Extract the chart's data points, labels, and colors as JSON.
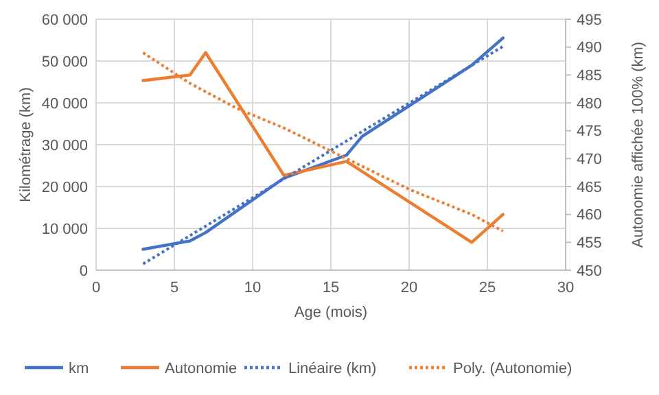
{
  "chart_data": {
    "type": "line",
    "xlabel": "Age (mois)",
    "ylabel": "Kilométrage (km)",
    "y2label": "Autonomie affichée 100% (km)",
    "xlim": [
      0,
      30
    ],
    "xticks": [
      0,
      5,
      10,
      15,
      20,
      25,
      30
    ],
    "ylim": [
      0,
      60000
    ],
    "yticks": [
      0,
      {
        "value": 10000,
        "label": "10 000"
      },
      {
        "value": 20000,
        "label": "20 000"
      },
      {
        "value": 30000,
        "label": "30 000"
      },
      {
        "value": 40000,
        "label": "40 000"
      },
      {
        "value": 50000,
        "label": "50 000"
      },
      {
        "value": 60000,
        "label": "60 000"
      }
    ],
    "y2lim": [
      450,
      495
    ],
    "y2ticks": [
      450,
      455,
      460,
      465,
      470,
      475,
      480,
      485,
      490,
      495
    ],
    "grid": true,
    "legend": "bottom",
    "marker": "none",
    "series": [
      {
        "name": "km",
        "color": "#4472c4",
        "x": [
          3,
          6,
          7,
          12,
          16,
          17,
          24,
          26
        ],
        "values": [
          5000,
          7000,
          9000,
          22000,
          27500,
          32000,
          49000,
          55500
        ],
        "line_style": "solid"
      },
      {
        "name": "Autonomie",
        "color": "#ed7d31",
        "axis": "y2",
        "x": [
          3,
          6,
          7,
          12,
          16,
          24,
          26
        ],
        "values": [
          484,
          485,
          489,
          467,
          469.5,
          455,
          460
        ],
        "line_style": "solid"
      },
      {
        "name": "Linéaire (km)",
        "color": "#4472c4",
        "x": [
          3,
          26
        ],
        "values": [
          1500,
          53500
        ],
        "line_style": "dotted"
      },
      {
        "name": "Poly. (Autonomie)",
        "color": "#ed7d31",
        "axis": "y2",
        "x": [
          3,
          6,
          9,
          12,
          16,
          20,
          24,
          26
        ],
        "values": [
          489,
          483.5,
          479,
          475.5,
          470,
          464.5,
          460,
          457
        ],
        "line_style": "dotted"
      }
    ]
  }
}
